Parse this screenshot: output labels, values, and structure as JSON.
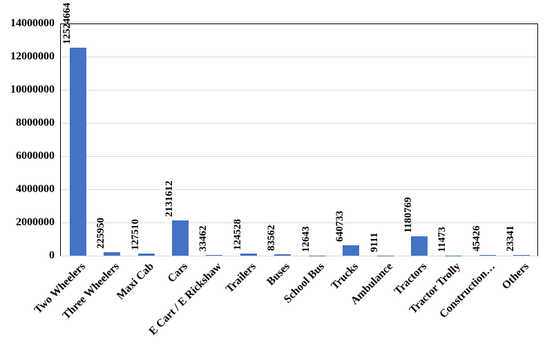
{
  "chart_data": {
    "type": "bar",
    "title": "",
    "xlabel": "",
    "ylabel": "",
    "categories": [
      "Two Wheelers",
      "Three Wheelers",
      "Maxi Cab",
      "Cars",
      "E Cart / E Rickshaw",
      "Trailers",
      "Buses",
      "School Bus",
      "Trucks",
      "Ambulance",
      "Tractors",
      "Tractor Trolly",
      "Construction…",
      "Others"
    ],
    "values": [
      12524664,
      225950,
      127510,
      2131612,
      33462,
      124528,
      83562,
      12643,
      640733,
      9111,
      1180769,
      11473,
      45426,
      23341
    ],
    "data_labels": [
      "12524664",
      "225950",
      "127510",
      "2131612",
      "33462",
      "124528",
      "83562",
      "12643",
      "640733",
      "9111",
      "1180769",
      "11473",
      "45426",
      "23341"
    ],
    "ylim": [
      0,
      14000000
    ],
    "ytick_interval": 2000000,
    "ytick_labels": [
      "0",
      "2000000",
      "4000000",
      "6000000",
      "8000000",
      "10000000",
      "12000000",
      "14000000"
    ],
    "grid": "horizontal",
    "legend": "none",
    "colors": {
      "bar": "#4472C4",
      "gridline": "#D9D9D9",
      "plot_border": "#000000",
      "baseline": "#D9D9D9",
      "text": "#000000"
    }
  }
}
